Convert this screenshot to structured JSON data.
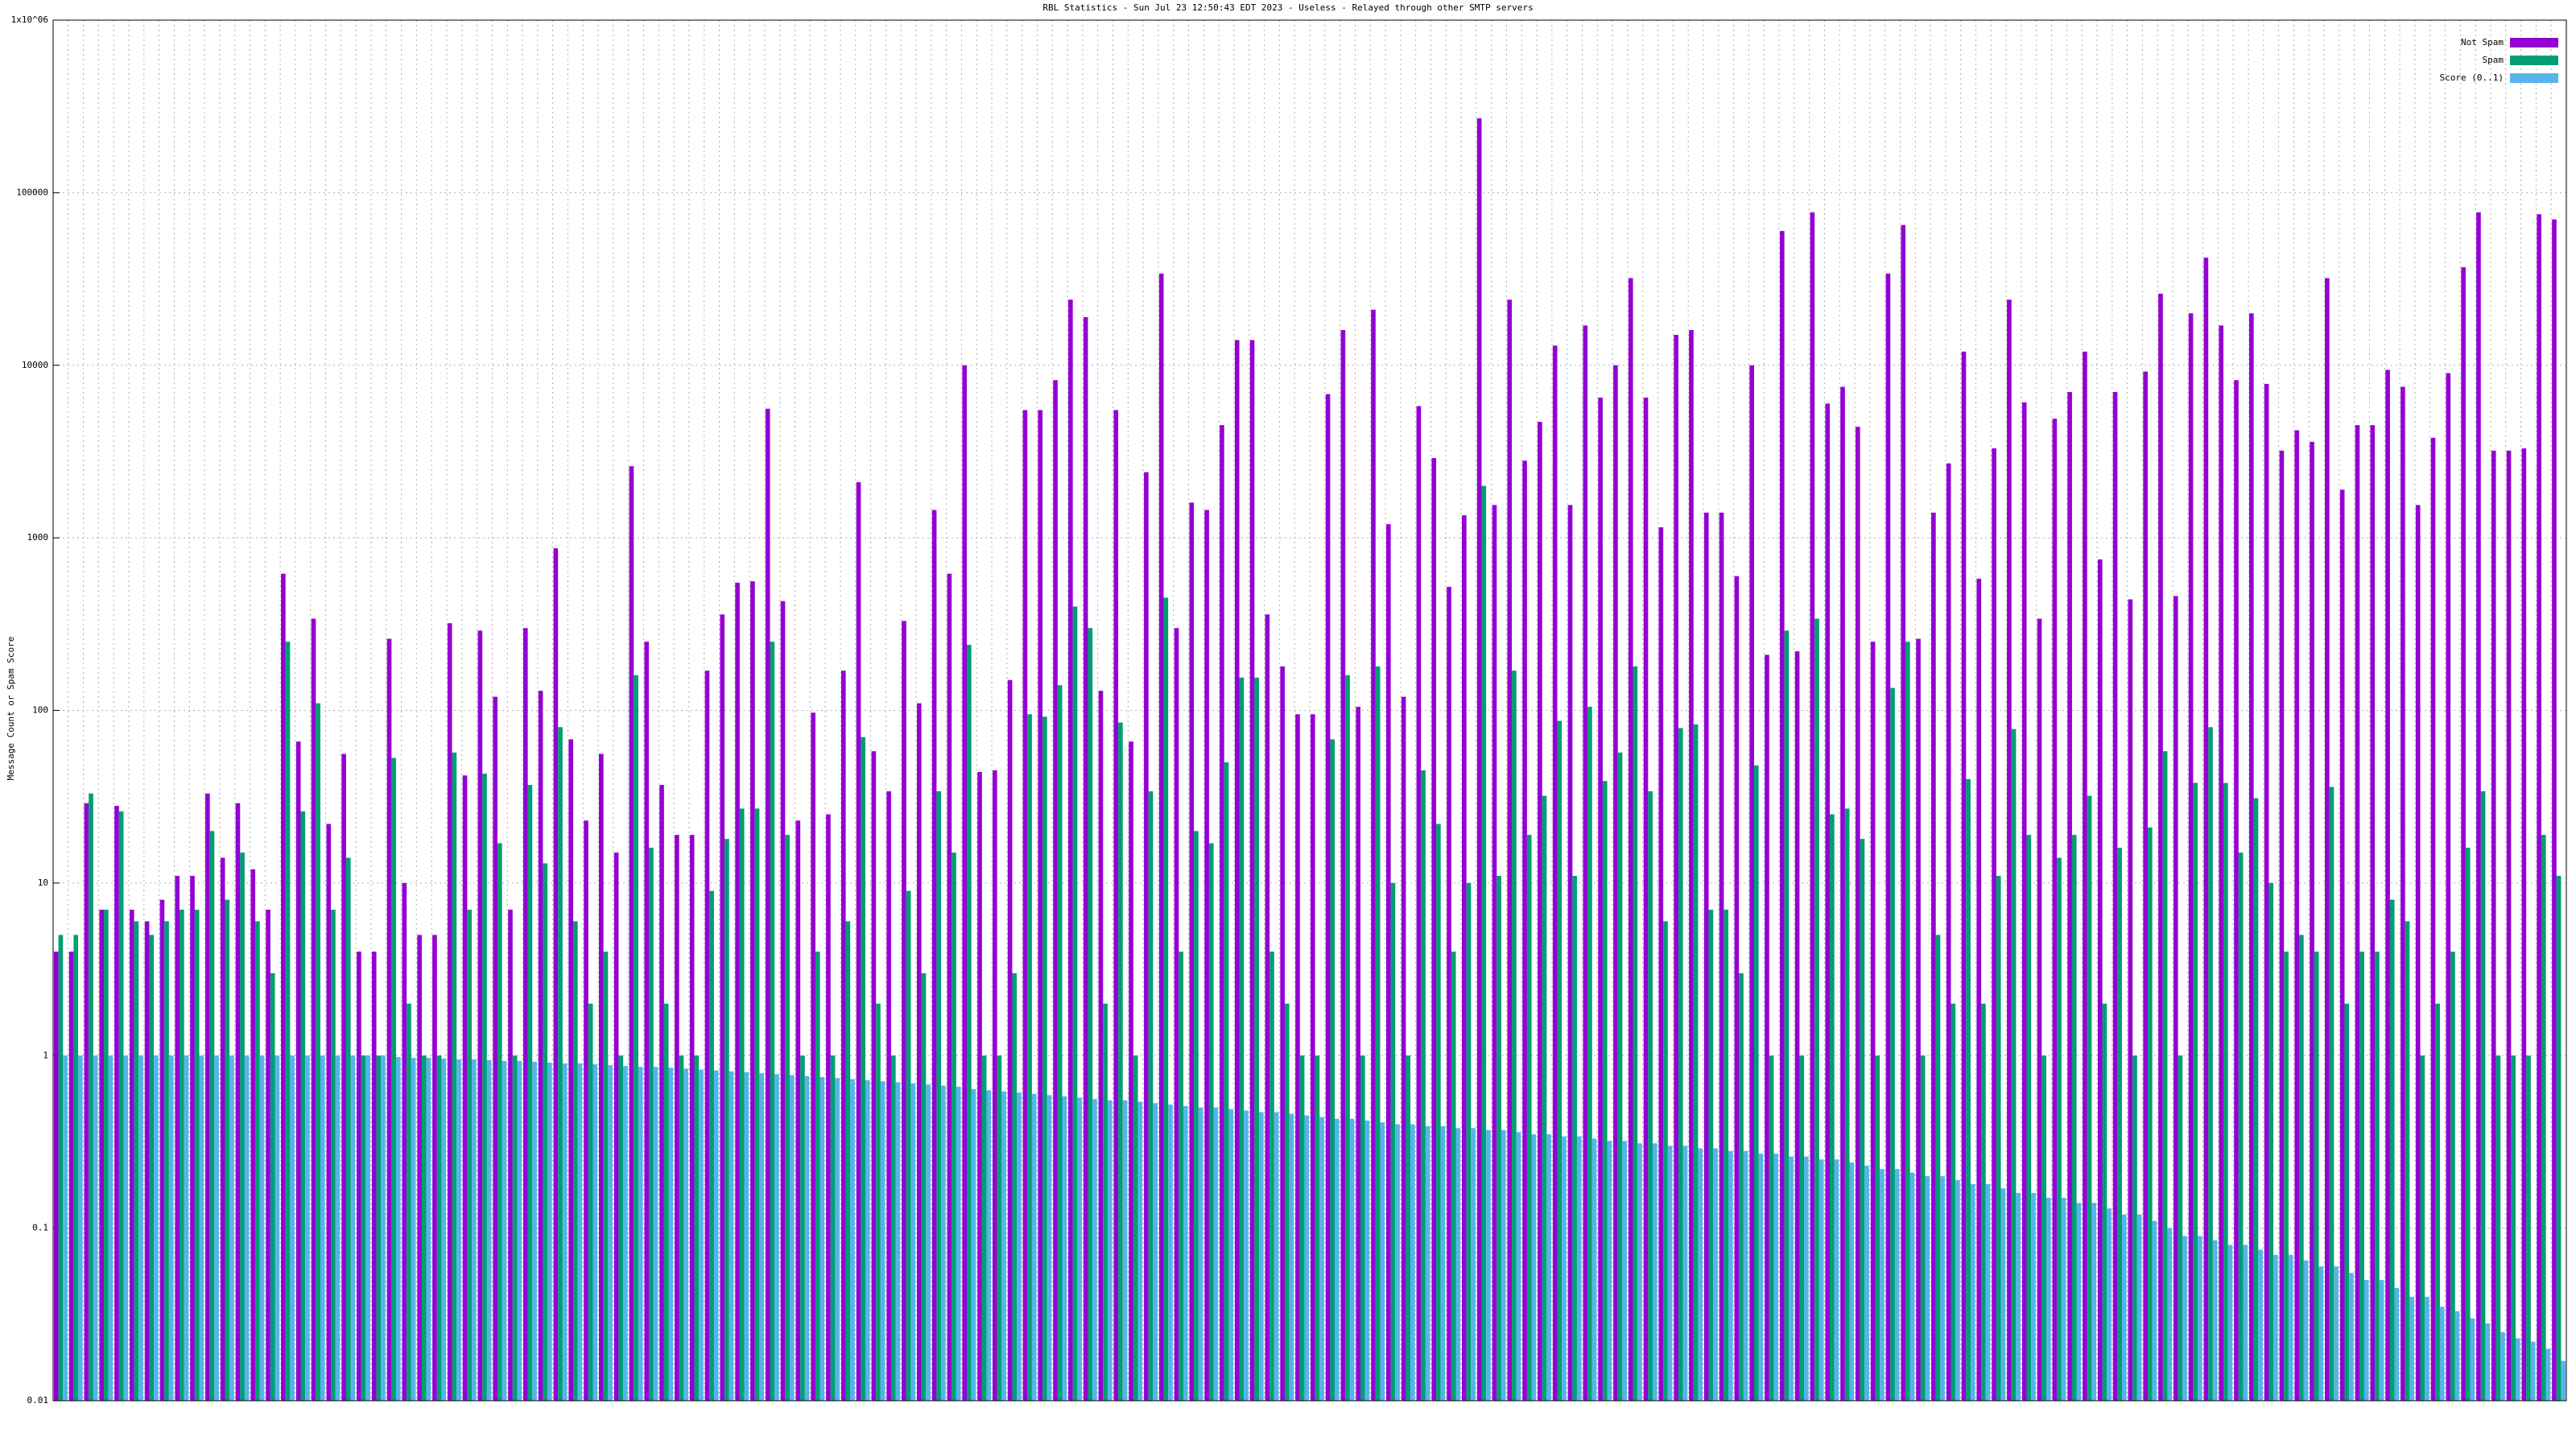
{
  "chart_data": {
    "type": "bar",
    "title": "RBL Statistics - Sun Jul 23 12:50:43 EDT 2023 - Useless - Relayed through other SMTP servers",
    "y_label": "Message Count or Spam Score",
    "log_scale": true,
    "grid": true,
    "legend": "upper right",
    "ylim": [
      0.01,
      1000000
    ],
    "yticks": [
      0.01,
      0.1,
      1,
      10,
      100,
      1000,
      10000,
      100000,
      {
        "value": 1000000,
        "label": "1x10^06"
      }
    ],
    "series": [
      {
        "name": "Not Spam",
        "color": "#9400d3",
        "values": [
          4,
          4,
          29,
          7,
          28,
          7,
          6,
          8,
          11,
          11,
          33,
          14,
          29,
          12,
          7,
          620,
          66,
          340,
          22,
          56,
          4,
          4,
          260,
          10,
          5,
          5,
          320,
          42,
          290,
          120,
          7,
          300,
          130,
          870,
          68,
          23,
          56,
          15,
          2600,
          250,
          37,
          19,
          19,
          170,
          360,
          550,
          560,
          5600,
          430,
          23,
          97,
          25,
          170,
          2100,
          58,
          34,
          330,
          110,
          1450,
          620,
          10000,
          44,
          45,
          150,
          5500,
          5500,
          8200,
          24000,
          19000,
          130,
          5500,
          66,
          2400,
          34000,
          300,
          1600,
          1450,
          4500,
          14000,
          14000,
          360,
          180,
          95,
          95,
          6800,
          16000,
          105,
          21000,
          1200,
          120,
          5800,
          2900,
          520,
          1350,
          270000,
          1550,
          24000,
          2800,
          4700,
          13000,
          1550,
          17000,
          6500,
          10000,
          32000,
          6500,
          1150,
          15000,
          16000,
          1400,
          1400,
          600,
          10000,
          210,
          60000,
          220,
          77000,
          6000,
          7500,
          4400,
          250,
          34000,
          65000,
          260,
          1400,
          2700,
          12000,
          580,
          3300,
          24000,
          6100,
          340,
          4900,
          7000,
          12000,
          750,
          7000,
          440,
          9200,
          26000,
          460,
          20000,
          42000,
          17000,
          8200,
          20000,
          7800,
          3200,
          4200,
          3600,
          32000,
          1900,
          4500,
          4500,
          9400,
          7500,
          1550,
          3800,
          9000,
          37000,
          77000,
          3200,
          3200,
          3300,
          75000,
          70000
        ]
      },
      {
        "name": "Spam",
        "color": "#009e73",
        "values": [
          5,
          5,
          33,
          7,
          26,
          6,
          5,
          6,
          7,
          7,
          20,
          8,
          15,
          6,
          3,
          250,
          26,
          110,
          7,
          14,
          1,
          1,
          53,
          2,
          1,
          1,
          57,
          7,
          43,
          17,
          1,
          37,
          13,
          80,
          6,
          2,
          4,
          1,
          160,
          16,
          2,
          1,
          1,
          9,
          18,
          27,
          27,
          250,
          19,
          1,
          4,
          1,
          6,
          70,
          2,
          1,
          9,
          3,
          34,
          15,
          240,
          1,
          1,
          3,
          95,
          92,
          140,
          400,
          300,
          2,
          85,
          1,
          34,
          450,
          4,
          20,
          17,
          50,
          155,
          155,
          4,
          2,
          1,
          1,
          68,
          160,
          1,
          180,
          10,
          1,
          45,
          22,
          4,
          10,
          2000,
          11,
          170,
          19,
          32,
          87,
          11,
          105,
          39,
          57,
          180,
          34,
          6,
          79,
          83,
          7,
          7,
          3,
          48,
          1,
          290,
          1,
          340,
          25,
          27,
          18,
          1,
          135,
          250,
          1,
          5,
          2,
          40,
          2,
          11,
          78,
          19,
          1,
          14,
          19,
          32,
          2,
          16,
          1,
          21,
          58,
          1,
          38,
          80,
          38,
          15,
          31,
          10,
          4,
          5,
          4,
          36,
          2,
          4,
          4,
          8,
          6,
          1,
          2,
          4,
          16,
          34,
          1,
          1,
          1,
          19,
          11
        ]
      },
      {
        "name": "Score (0..1)",
        "color": "#56b4e9",
        "values": [
          1,
          1,
          1,
          1,
          1,
          1,
          1,
          1,
          1,
          1,
          1,
          1,
          1,
          1,
          1,
          1,
          1,
          1,
          1,
          1,
          1,
          1,
          0.98,
          0.97,
          0.97,
          0.96,
          0.95,
          0.95,
          0.94,
          0.93,
          0.93,
          0.92,
          0.91,
          0.9,
          0.9,
          0.89,
          0.88,
          0.87,
          0.86,
          0.86,
          0.85,
          0.84,
          0.83,
          0.82,
          0.81,
          0.8,
          0.79,
          0.78,
          0.77,
          0.76,
          0.75,
          0.74,
          0.73,
          0.72,
          0.71,
          0.7,
          0.69,
          0.68,
          0.67,
          0.66,
          0.64,
          0.63,
          0.62,
          0.61,
          0.6,
          0.59,
          0.58,
          0.57,
          0.56,
          0.55,
          0.55,
          0.54,
          0.53,
          0.52,
          0.51,
          0.5,
          0.5,
          0.49,
          0.48,
          0.47,
          0.47,
          0.46,
          0.45,
          0.44,
          0.43,
          0.43,
          0.42,
          0.41,
          0.4,
          0.4,
          0.39,
          0.39,
          0.38,
          0.38,
          0.37,
          0.37,
          0.36,
          0.35,
          0.35,
          0.34,
          0.34,
          0.33,
          0.32,
          0.32,
          0.31,
          0.31,
          0.3,
          0.3,
          0.29,
          0.29,
          0.28,
          0.28,
          0.27,
          0.27,
          0.26,
          0.26,
          0.25,
          0.25,
          0.24,
          0.23,
          0.22,
          0.22,
          0.21,
          0.2,
          0.2,
          0.19,
          0.18,
          0.18,
          0.17,
          0.16,
          0.16,
          0.15,
          0.15,
          0.14,
          0.14,
          0.13,
          0.12,
          0.12,
          0.11,
          0.1,
          0.09,
          0.09,
          0.085,
          0.08,
          0.08,
          0.075,
          0.07,
          0.07,
          0.065,
          0.06,
          0.06,
          0.055,
          0.05,
          0.05,
          0.045,
          0.04,
          0.04,
          0.035,
          0.033,
          0.03,
          0.028,
          0.025,
          0.023,
          0.022,
          0.02,
          0.017
        ]
      }
    ]
  }
}
